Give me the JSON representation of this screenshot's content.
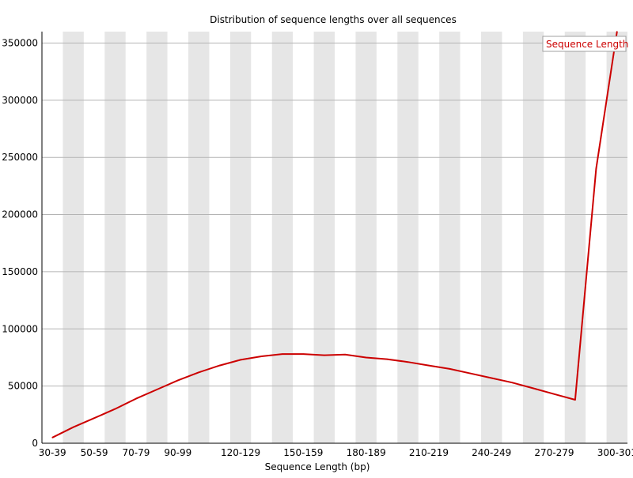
{
  "chart_data": {
    "type": "line",
    "title": "Distribution of sequence lengths over all sequences",
    "xlabel": "Sequence Length (bp)",
    "ylabel": "",
    "ylim": [
      0,
      360000
    ],
    "y_ticks": [
      0,
      50000,
      100000,
      150000,
      200000,
      250000,
      300000,
      350000
    ],
    "categories": [
      "30-39",
      "40-49",
      "50-59",
      "60-69",
      "70-79",
      "80-89",
      "90-99",
      "100-109",
      "110-119",
      "120-129",
      "130-139",
      "140-149",
      "150-159",
      "160-169",
      "170-179",
      "180-189",
      "190-199",
      "200-209",
      "210-219",
      "220-229",
      "230-239",
      "240-249",
      "250-259",
      "260-269",
      "270-279",
      "280-289",
      "290-299",
      "300-301"
    ],
    "x_tick_labels": [
      "30-39",
      "50-59",
      "70-79",
      "90-99",
      "120-129",
      "150-159",
      "180-189",
      "210-219",
      "240-249",
      "270-279",
      "300-301"
    ],
    "x_tick_indices": [
      0,
      2,
      4,
      6,
      9,
      12,
      15,
      18,
      21,
      24,
      27
    ],
    "grid": true,
    "alternating_bands": true,
    "legend_position": "top-right",
    "series": [
      {
        "name": "Sequence Length",
        "color": "#cc0000",
        "values": [
          5000,
          14000,
          22000,
          30000,
          39000,
          47000,
          55000,
          62000,
          68000,
          73000,
          76000,
          78000,
          78000,
          77000,
          77500,
          75000,
          73500,
          71000,
          68000,
          65000,
          61000,
          57000,
          53000,
          48000,
          43000,
          38000,
          240000,
          360000
        ]
      }
    ]
  }
}
